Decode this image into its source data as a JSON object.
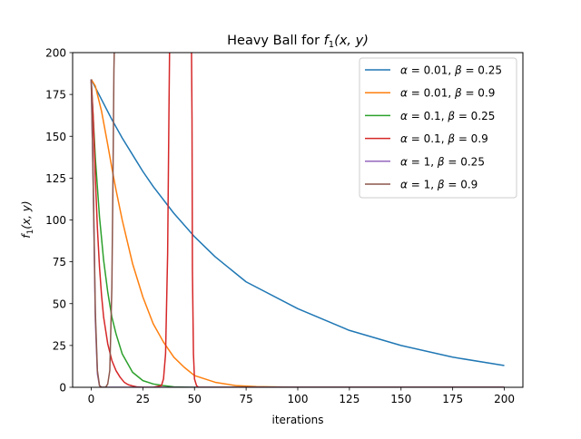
{
  "chart_data": {
    "type": "line",
    "title": {
      "prefix": "Heavy Ball for ",
      "fn": "f",
      "sub": "1",
      "args": "(x, y)"
    },
    "xlabel": "iterations",
    "ylabel": {
      "fn": "f",
      "sub": "1",
      "args": "(x, y)"
    },
    "xlim": [
      -9,
      209
    ],
    "ylim": [
      0,
      200
    ],
    "xticks": [
      0,
      25,
      50,
      75,
      100,
      125,
      150,
      175,
      200
    ],
    "yticks": [
      0,
      25,
      50,
      75,
      100,
      125,
      150,
      175,
      200
    ],
    "grid": false,
    "legend_position": "top-right",
    "series": [
      {
        "name": "α = 0.01, β = 0.25",
        "alpha": "0.01",
        "beta": "0.25",
        "color": "#1f77b4",
        "x": [
          0,
          5,
          10,
          15,
          20,
          25,
          30,
          40,
          50,
          60,
          75,
          100,
          125,
          150,
          175,
          200
        ],
        "y": [
          184,
          172,
          160,
          149,
          139,
          129,
          120,
          104,
          90,
          78,
          63,
          47,
          34,
          25,
          18,
          13
        ]
      },
      {
        "name": "α = 0.01, β = 0.9",
        "alpha": "0.01",
        "beta": "0.9",
        "color": "#ff7f0e",
        "x": [
          0,
          2,
          5,
          8,
          10,
          12,
          15,
          20,
          25,
          30,
          35,
          40,
          45,
          50,
          60,
          70,
          80,
          100,
          200
        ],
        "y": [
          184,
          180,
          165,
          145,
          131,
          118,
          100,
          74,
          54,
          38,
          27,
          18,
          12,
          7,
          3,
          1,
          0.4,
          0,
          0
        ]
      },
      {
        "name": "α = 0.1, β = 0.25",
        "alpha": "0.1",
        "beta": "0.25",
        "color": "#2ca02c",
        "x": [
          0,
          2,
          4,
          6,
          8,
          10,
          12,
          15,
          20,
          25,
          30,
          35,
          40,
          50,
          60,
          200
        ],
        "y": [
          184,
          137,
          102,
          76,
          57,
          42,
          32,
          20,
          9,
          4,
          2,
          1,
          0.3,
          0,
          0,
          0
        ]
      },
      {
        "name": "α = 0.1, β = 0.9",
        "alpha": "0.1",
        "beta": "0.9",
        "color": "#d62728",
        "x": [
          0,
          1,
          2,
          3,
          4,
          5,
          6,
          8,
          10,
          12,
          14,
          16,
          18,
          20,
          22,
          25,
          30,
          34,
          35,
          36,
          37,
          37.6,
          38,
          40,
          45,
          48.5,
          48.8,
          49,
          49.5,
          50,
          51,
          52,
          60,
          200
        ],
        "y": [
          184,
          160,
          125,
          95,
          72,
          55,
          42,
          26,
          16,
          10,
          6,
          3,
          1.5,
          0.8,
          0.3,
          0,
          0,
          1,
          5,
          20,
          80,
          160,
          210,
          210,
          210,
          210,
          160,
          70,
          20,
          5,
          1,
          0,
          0,
          0
        ]
      },
      {
        "name": "α = 1, β = 0.25",
        "alpha": "1",
        "beta": "0.25",
        "color": "#9467bd",
        "x": [
          0,
          1,
          2,
          3,
          4,
          5,
          7,
          10,
          200
        ],
        "y": [
          184,
          120,
          40,
          8,
          1,
          0,
          0,
          0,
          0
        ]
      },
      {
        "name": "α = 1, β = 0.9",
        "alpha": "1",
        "beta": "0.9",
        "color": "#8c564b",
        "x": [
          0,
          1,
          2,
          3,
          4,
          5,
          6,
          7,
          8,
          9,
          10,
          10.5,
          11,
          11.3
        ],
        "y": [
          184,
          120,
          45,
          10,
          1,
          0,
          0,
          0,
          2,
          10,
          60,
          120,
          190,
          210
        ]
      }
    ]
  }
}
